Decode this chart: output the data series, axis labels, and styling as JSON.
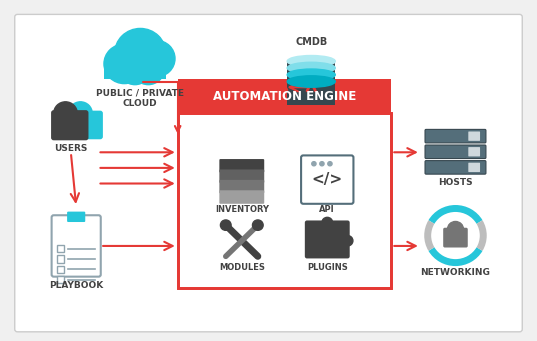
{
  "bg_color": "#f5f5f5",
  "box_color": "#ffffff",
  "red_header_color": "#e53935",
  "red_box_border": "#e53935",
  "arrow_color": "#e53935",
  "teal_color": "#26c6da",
  "dark_gray": "#424242",
  "mid_gray": "#757575",
  "light_gray": "#bdbdbd",
  "title": "AUTOMATION ENGINE",
  "labels": {
    "users": "USERS",
    "cloud": "PUBLIC / PRIVATE\nCLOUD",
    "cmdb": "CMDB",
    "inventory": "INVENTORY",
    "api": "API",
    "modules": "MODULES",
    "plugins": "PLUGINS",
    "hosts": "HOSTS",
    "networking": "NETWORKING",
    "playbook": "PLAYBOOK"
  }
}
